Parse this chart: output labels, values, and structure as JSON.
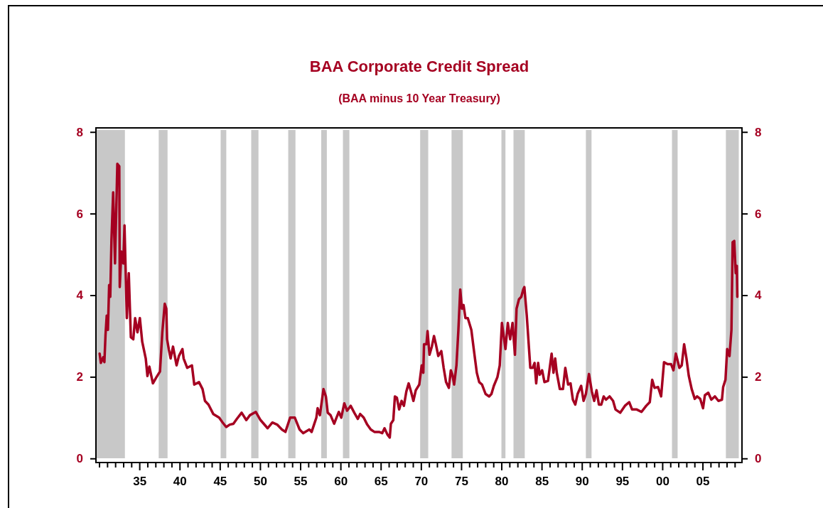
{
  "chart_data": {
    "type": "line",
    "title": "BAA Corporate Credit Spread",
    "subtitle": "(BAA minus 10 Year Treasury)",
    "xlim": [
      1929.6,
      2009.9
    ],
    "ylim": [
      -0.1,
      8.1
    ],
    "yticks": [
      0,
      2,
      4,
      6,
      8
    ],
    "y2lim": [
      -0.1,
      8.1
    ],
    "y2ticks": [
      0,
      2,
      4,
      6,
      8
    ],
    "xticks": [
      {
        "value": 1930,
        "label": null
      },
      {
        "value": 1931,
        "label": null
      },
      {
        "value": 1932,
        "label": null
      },
      {
        "value": 1933,
        "label": null
      },
      {
        "value": 1934,
        "label": null
      },
      {
        "value": 1935,
        "label": "35"
      },
      {
        "value": 1936,
        "label": null
      },
      {
        "value": 1937,
        "label": null
      },
      {
        "value": 1938,
        "label": null
      },
      {
        "value": 1939,
        "label": null
      },
      {
        "value": 1940,
        "label": "40"
      },
      {
        "value": 1941,
        "label": null
      },
      {
        "value": 1942,
        "label": null
      },
      {
        "value": 1943,
        "label": null
      },
      {
        "value": 1944,
        "label": null
      },
      {
        "value": 1945,
        "label": "45"
      },
      {
        "value": 1946,
        "label": null
      },
      {
        "value": 1947,
        "label": null
      },
      {
        "value": 1948,
        "label": null
      },
      {
        "value": 1949,
        "label": null
      },
      {
        "value": 1950,
        "label": "50"
      },
      {
        "value": 1951,
        "label": null
      },
      {
        "value": 1952,
        "label": null
      },
      {
        "value": 1953,
        "label": null
      },
      {
        "value": 1954,
        "label": null
      },
      {
        "value": 1955,
        "label": "55"
      },
      {
        "value": 1956,
        "label": null
      },
      {
        "value": 1957,
        "label": null
      },
      {
        "value": 1958,
        "label": null
      },
      {
        "value": 1959,
        "label": null
      },
      {
        "value": 1960,
        "label": "60"
      },
      {
        "value": 1961,
        "label": null
      },
      {
        "value": 1962,
        "label": null
      },
      {
        "value": 1963,
        "label": null
      },
      {
        "value": 1964,
        "label": null
      },
      {
        "value": 1965,
        "label": "65"
      },
      {
        "value": 1966,
        "label": null
      },
      {
        "value": 1967,
        "label": null
      },
      {
        "value": 1968,
        "label": null
      },
      {
        "value": 1969,
        "label": null
      },
      {
        "value": 1970,
        "label": "70"
      },
      {
        "value": 1971,
        "label": null
      },
      {
        "value": 1972,
        "label": null
      },
      {
        "value": 1973,
        "label": null
      },
      {
        "value": 1974,
        "label": null
      },
      {
        "value": 1975,
        "label": "75"
      },
      {
        "value": 1976,
        "label": null
      },
      {
        "value": 1977,
        "label": null
      },
      {
        "value": 1978,
        "label": null
      },
      {
        "value": 1979,
        "label": null
      },
      {
        "value": 1980,
        "label": "80"
      },
      {
        "value": 1981,
        "label": null
      },
      {
        "value": 1982,
        "label": null
      },
      {
        "value": 1983,
        "label": null
      },
      {
        "value": 1984,
        "label": null
      },
      {
        "value": 1985,
        "label": "85"
      },
      {
        "value": 1986,
        "label": null
      },
      {
        "value": 1987,
        "label": null
      },
      {
        "value": 1988,
        "label": null
      },
      {
        "value": 1989,
        "label": null
      },
      {
        "value": 1990,
        "label": "90"
      },
      {
        "value": 1991,
        "label": null
      },
      {
        "value": 1992,
        "label": null
      },
      {
        "value": 1993,
        "label": null
      },
      {
        "value": 1994,
        "label": null
      },
      {
        "value": 1995,
        "label": "95"
      },
      {
        "value": 1996,
        "label": null
      },
      {
        "value": 1997,
        "label": null
      },
      {
        "value": 1998,
        "label": null
      },
      {
        "value": 1999,
        "label": null
      },
      {
        "value": 2000,
        "label": "00"
      },
      {
        "value": 2001,
        "label": null
      },
      {
        "value": 2002,
        "label": null
      },
      {
        "value": 2003,
        "label": null
      },
      {
        "value": 2004,
        "label": null
      },
      {
        "value": 2005,
        "label": "05"
      },
      {
        "value": 2006,
        "label": null
      },
      {
        "value": 2007,
        "label": null
      },
      {
        "value": 2008,
        "label": null
      },
      {
        "value": 2009,
        "label": null
      }
    ],
    "grid": false,
    "marker": "none",
    "line_style": "solid",
    "bands": [
      {
        "axis": "x",
        "from": 1929.6,
        "to": 1933.2,
        "color": "#c8c8c8"
      },
      {
        "axis": "x",
        "from": 1937.4,
        "to": 1938.5,
        "color": "#c8c8c8"
      },
      {
        "axis": "x",
        "from": 1945.1,
        "to": 1945.8,
        "color": "#c8c8c8"
      },
      {
        "axis": "x",
        "from": 1948.9,
        "to": 1949.8,
        "color": "#c8c8c8"
      },
      {
        "axis": "x",
        "from": 1953.5,
        "to": 1954.4,
        "color": "#c8c8c8"
      },
      {
        "axis": "x",
        "from": 1957.6,
        "to": 1958.3,
        "color": "#c8c8c8"
      },
      {
        "axis": "x",
        "from": 1960.3,
        "to": 1961.1,
        "color": "#c8c8c8"
      },
      {
        "axis": "x",
        "from": 1969.9,
        "to": 1970.9,
        "color": "#c8c8c8"
      },
      {
        "axis": "x",
        "from": 1973.8,
        "to": 1975.2,
        "color": "#c8c8c8"
      },
      {
        "axis": "x",
        "from": 1980.0,
        "to": 1980.5,
        "color": "#c8c8c8"
      },
      {
        "axis": "x",
        "from": 1981.5,
        "to": 1982.9,
        "color": "#c8c8c8"
      },
      {
        "axis": "x",
        "from": 1990.5,
        "to": 1991.2,
        "color": "#c8c8c8"
      },
      {
        "axis": "x",
        "from": 2001.2,
        "to": 2001.9,
        "color": "#c8c8c8"
      },
      {
        "axis": "x",
        "from": 2007.9,
        "to": 2009.5,
        "color": "#c8c8c8"
      }
    ],
    "series": [
      {
        "color": "#a50021",
        "x": [
          1930.06,
          1930.21,
          1930.5,
          1930.65,
          1930.79,
          1930.94,
          1931.09,
          1931.24,
          1931.38,
          1931.53,
          1931.74,
          1931.97,
          1932.26,
          1932.5,
          1932.56,
          1932.76,
          1933.0,
          1933.15,
          1933.44,
          1933.68,
          1933.94,
          1934.24,
          1934.47,
          1934.76,
          1935.06,
          1935.35,
          1935.79,
          1936.0,
          1936.24,
          1936.68,
          1937.12,
          1937.56,
          1937.85,
          1938.15,
          1938.35,
          1938.44,
          1938.65,
          1938.88,
          1939.18,
          1939.62,
          1939.91,
          1940.35,
          1940.5,
          1940.94,
          1941.53,
          1941.82,
          1942.41,
          1942.85,
          1943.15,
          1943.59,
          1944.18,
          1944.91,
          1945.35,
          1945.79,
          1946.24,
          1946.68,
          1947.12,
          1947.71,
          1948.29,
          1948.74,
          1949.47,
          1950.06,
          1950.94,
          1951.53,
          1952.12,
          1952.71,
          1953.15,
          1953.74,
          1954.32,
          1954.91,
          1955.35,
          1956.12,
          1956.41,
          1956.71,
          1957.0,
          1957.15,
          1957.44,
          1957.88,
          1958.18,
          1958.41,
          1958.76,
          1959.21,
          1959.5,
          1959.79,
          1960.09,
          1960.47,
          1960.82,
          1961.26,
          1961.71,
          1962.15,
          1962.44,
          1962.88,
          1963.32,
          1963.76,
          1964.21,
          1964.79,
          1965.18,
          1965.47,
          1965.82,
          1966.12,
          1966.26,
          1966.56,
          1966.76,
          1967.0,
          1967.29,
          1967.59,
          1967.88,
          1968.18,
          1968.47,
          1968.76,
          1969.06,
          1969.35,
          1969.79,
          1970.09,
          1970.29,
          1970.38,
          1970.68,
          1970.82,
          1971.06,
          1971.35,
          1971.62,
          1971.85,
          1972.15,
          1972.53,
          1972.82,
          1973.12,
          1973.47,
          1973.71,
          1973.91,
          1974.12,
          1974.41,
          1974.65,
          1974.88,
          1975.09,
          1975.29,
          1975.53,
          1975.82,
          1976.26,
          1976.56,
          1976.94,
          1977.24,
          1977.59,
          1978.03,
          1978.47,
          1978.76,
          1979.06,
          1979.5,
          1979.79,
          1980.06,
          1980.5,
          1980.79,
          1981.09,
          1981.38,
          1981.68,
          1981.88,
          1982.18,
          1982.47,
          1982.71,
          1982.85,
          1983.15,
          1983.35,
          1983.59,
          1983.88,
          1984.12,
          1984.32,
          1984.56,
          1984.76,
          1985.06,
          1985.35,
          1985.79,
          1986.24,
          1986.47,
          1986.68,
          1986.88,
          1987.26,
          1987.65,
          1987.94,
          1988.29,
          1988.59,
          1988.88,
          1989.18,
          1989.47,
          1989.91,
          1990.21,
          1990.5,
          1990.88,
          1991.24,
          1991.53,
          1991.82,
          1992.12,
          1992.41,
          1992.71,
          1993.0,
          1993.44,
          1993.88,
          1994.18,
          1994.76,
          1995.35,
          1995.88,
          1996.24,
          1996.82,
          1997.41,
          1998.0,
          1998.44,
          1998.74,
          1999.03,
          1999.47,
          1999.85,
          2000.21,
          2000.65,
          2001.09,
          2001.38,
          2001.68,
          2002.12,
          2002.41,
          2002.71,
          2003.0,
          2003.29,
          2003.65,
          2004.03,
          2004.32,
          2004.71,
          2005.06,
          2005.29,
          2005.71,
          2006.09,
          2006.53,
          2006.97,
          2007.41,
          2007.56,
          2007.85,
          2008.06,
          2008.35,
          2008.59,
          2008.74,
          2008.94,
          2009.12,
          2009.26,
          2009.32
        ],
        "values": [
          2.57,
          2.34,
          2.48,
          2.36,
          3.03,
          3.5,
          3.15,
          4.25,
          3.96,
          5.36,
          6.52,
          4.78,
          7.22,
          7.16,
          4.2,
          5.07,
          4.78,
          5.71,
          3.44,
          4.54,
          2.97,
          2.92,
          3.44,
          3.09,
          3.44,
          2.86,
          2.45,
          2.02,
          2.25,
          1.84,
          1.99,
          2.13,
          3.09,
          3.79,
          3.67,
          2.92,
          2.68,
          2.45,
          2.74,
          2.28,
          2.51,
          2.68,
          2.45,
          2.22,
          2.28,
          1.81,
          1.87,
          1.7,
          1.41,
          1.32,
          1.09,
          1.0,
          0.88,
          0.77,
          0.83,
          0.85,
          0.97,
          1.12,
          0.94,
          1.06,
          1.14,
          0.94,
          0.74,
          0.88,
          0.83,
          0.71,
          0.65,
          1.0,
          1.0,
          0.71,
          0.62,
          0.71,
          0.65,
          0.83,
          1.0,
          1.23,
          1.06,
          1.7,
          1.52,
          1.12,
          1.06,
          0.85,
          1.0,
          1.14,
          1.0,
          1.35,
          1.17,
          1.29,
          1.12,
          0.97,
          1.09,
          1.0,
          0.83,
          0.71,
          0.65,
          0.65,
          0.62,
          0.74,
          0.59,
          0.51,
          0.85,
          0.94,
          1.52,
          1.49,
          1.2,
          1.41,
          1.29,
          1.64,
          1.84,
          1.64,
          1.41,
          1.67,
          1.81,
          2.28,
          2.1,
          2.8,
          2.8,
          3.12,
          2.54,
          2.74,
          3.0,
          2.8,
          2.51,
          2.63,
          2.22,
          1.87,
          1.73,
          2.16,
          2.05,
          1.81,
          2.28,
          3.15,
          4.14,
          3.67,
          3.76,
          3.44,
          3.44,
          3.15,
          2.68,
          2.1,
          1.87,
          1.81,
          1.58,
          1.52,
          1.58,
          1.78,
          1.99,
          2.28,
          3.32,
          2.68,
          3.32,
          2.92,
          3.32,
          2.54,
          3.67,
          3.9,
          3.96,
          4.14,
          4.2,
          3.5,
          2.92,
          2.22,
          2.22,
          2.34,
          1.84,
          2.34,
          2.05,
          2.16,
          1.87,
          1.9,
          2.57,
          2.1,
          2.45,
          2.1,
          1.7,
          1.7,
          2.22,
          1.81,
          1.84,
          1.44,
          1.32,
          1.58,
          1.78,
          1.41,
          1.58,
          2.07,
          1.64,
          1.41,
          1.67,
          1.32,
          1.32,
          1.52,
          1.44,
          1.52,
          1.41,
          1.2,
          1.12,
          1.29,
          1.38,
          1.2,
          1.2,
          1.14,
          1.29,
          1.38,
          1.93,
          1.73,
          1.75,
          1.52,
          2.36,
          2.31,
          2.31,
          2.16,
          2.57,
          2.22,
          2.28,
          2.8,
          2.45,
          2.02,
          1.7,
          1.46,
          1.52,
          1.46,
          1.23,
          1.55,
          1.61,
          1.44,
          1.52,
          1.41,
          1.44,
          1.75,
          1.93,
          2.68,
          2.51,
          3.15,
          5.3,
          5.33,
          4.54,
          4.72,
          3.96
        ]
      }
    ]
  }
}
